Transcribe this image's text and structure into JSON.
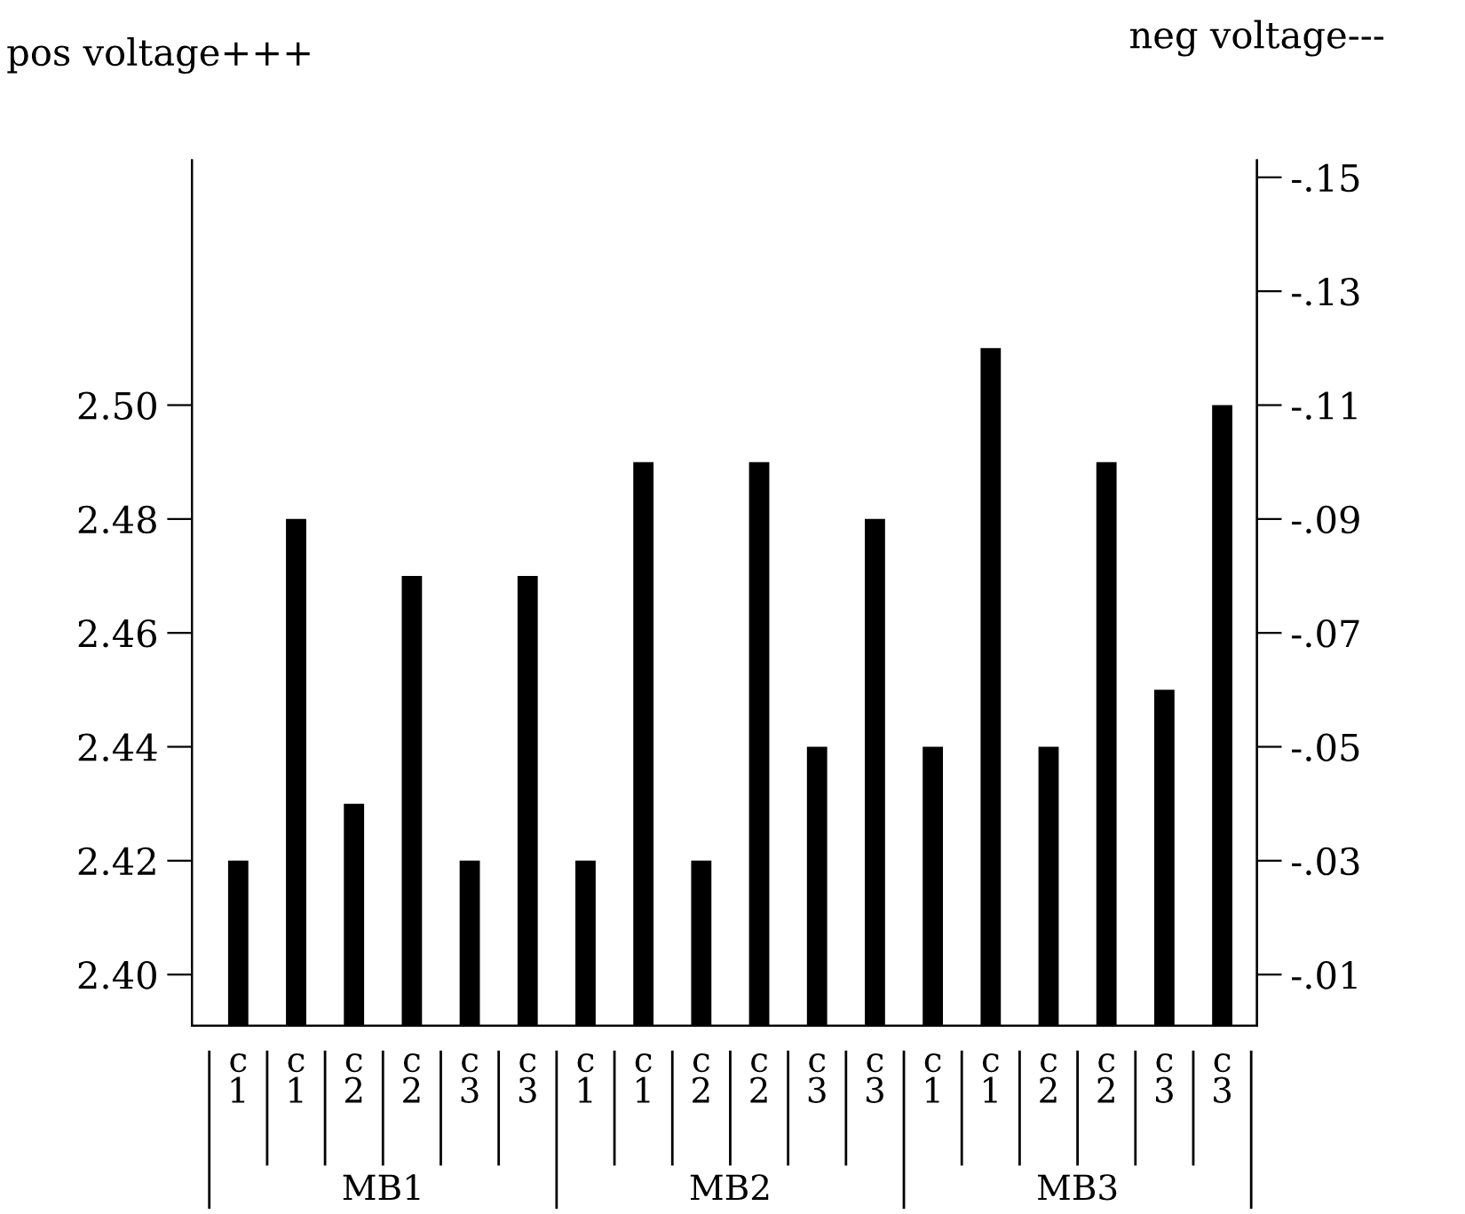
{
  "chart_data": {
    "type": "bar",
    "ylabel": "pos voltage+++",
    "y2label": "neg voltage---",
    "categories": [
      "c\n1",
      "c\n1",
      "c\n2",
      "c\n2",
      "c\n3",
      "c\n3",
      "c\n1",
      "c\n1",
      "c\n2",
      "c\n2",
      "c\n3",
      "c\n3",
      "c\n1",
      "c\n1",
      "c\n2",
      "c\n2",
      "c\n3",
      "c\n3"
    ],
    "series": [
      {
        "color": "#000000",
        "values": [
          2.42,
          null,
          2.43,
          null,
          2.42,
          null,
          2.42,
          null,
          2.42,
          null,
          2.44,
          null,
          2.44,
          null,
          2.44,
          null,
          2.45,
          null
        ]
      },
      {
        "color": "#000000",
        "axis": "y2",
        "values": [
          null,
          -0.09,
          null,
          -0.08,
          null,
          -0.08,
          null,
          -0.1,
          null,
          -0.1,
          null,
          -0.09,
          null,
          -0.12,
          null,
          -0.1,
          null,
          -0.11
        ]
      }
    ],
    "ylim": [
      2.391,
      2.543
    ],
    "yticks": [
      {
        "value": 2.4,
        "label": "2.40"
      },
      {
        "value": 2.42,
        "label": "2.42"
      },
      {
        "value": 2.44,
        "label": "2.44"
      },
      {
        "value": 2.46,
        "label": "2.46"
      },
      {
        "value": 2.48,
        "label": "2.48"
      },
      {
        "value": 2.5,
        "label": "2.50"
      }
    ],
    "y2lim": [
      -0.001,
      -0.153
    ],
    "y2ticks": [
      {
        "value": -0.01,
        "label": "-.01"
      },
      {
        "value": -0.03,
        "label": "-.03"
      },
      {
        "value": -0.05,
        "label": "-.05"
      },
      {
        "value": -0.07,
        "label": "-.07"
      },
      {
        "value": -0.09,
        "label": "-.09"
      },
      {
        "value": -0.11,
        "label": "-.11"
      },
      {
        "value": -0.13,
        "label": "-.13"
      },
      {
        "value": -0.15,
        "label": "-.15"
      }
    ],
    "annotations": [
      "MB1",
      "MB2",
      "MB3"
    ],
    "grid": false,
    "legend": false
  }
}
